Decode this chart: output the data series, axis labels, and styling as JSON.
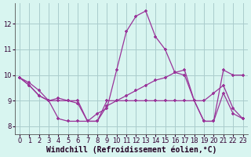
{
  "background_color": "#d8f5f0",
  "grid_color": "#aacccc",
  "line_color": "#993399",
  "xlabel": "Windchill (Refroidissement éolien,°C)",
  "xlim": [
    -0.5,
    23.5
  ],
  "ylim": [
    7.7,
    12.8
  ],
  "yticks": [
    8,
    9,
    10,
    11,
    12
  ],
  "xticks": [
    0,
    1,
    2,
    3,
    4,
    5,
    6,
    7,
    8,
    9,
    10,
    11,
    12,
    13,
    14,
    15,
    16,
    17,
    18,
    19,
    20,
    21,
    22,
    23
  ],
  "s1_x": [
    0,
    1,
    2,
    3,
    4,
    5,
    6,
    7,
    8,
    9,
    10,
    11,
    12,
    13,
    14,
    15,
    16,
    17,
    18,
    19,
    20,
    21,
    22,
    23
  ],
  "s1_y": [
    9.9,
    9.7,
    9.4,
    9.0,
    9.0,
    9.0,
    9.0,
    8.2,
    8.5,
    8.7,
    10.2,
    11.7,
    12.3,
    12.5,
    11.5,
    11.0,
    10.1,
    10.0,
    9.0,
    9.0,
    9.3,
    9.6,
    8.7,
    8.3
  ],
  "s2_x": [
    0,
    1,
    2,
    3,
    4,
    5,
    6,
    7,
    8,
    9,
    10,
    11,
    12,
    13,
    14,
    15,
    16,
    17,
    18,
    19,
    20,
    21,
    22,
    23
  ],
  "s2_y": [
    9.9,
    9.6,
    9.2,
    9.0,
    9.1,
    9.0,
    8.9,
    8.2,
    8.2,
    8.8,
    9.0,
    9.2,
    9.4,
    9.6,
    9.8,
    9.9,
    10.1,
    10.2,
    9.0,
    8.2,
    8.2,
    10.2,
    10.0,
    10.0
  ],
  "s3_x": [
    0,
    1,
    2,
    3,
    4,
    5,
    6,
    7,
    8,
    9,
    10,
    11,
    12,
    13,
    14,
    15,
    16,
    17,
    18,
    19,
    20,
    21,
    22,
    23
  ],
  "s3_y": [
    9.9,
    9.6,
    9.2,
    9.0,
    8.3,
    8.2,
    8.2,
    8.2,
    8.2,
    9.0,
    9.0,
    9.0,
    9.0,
    9.0,
    9.0,
    9.0,
    9.0,
    9.0,
    9.0,
    8.2,
    8.2,
    9.3,
    8.5,
    8.3
  ]
}
